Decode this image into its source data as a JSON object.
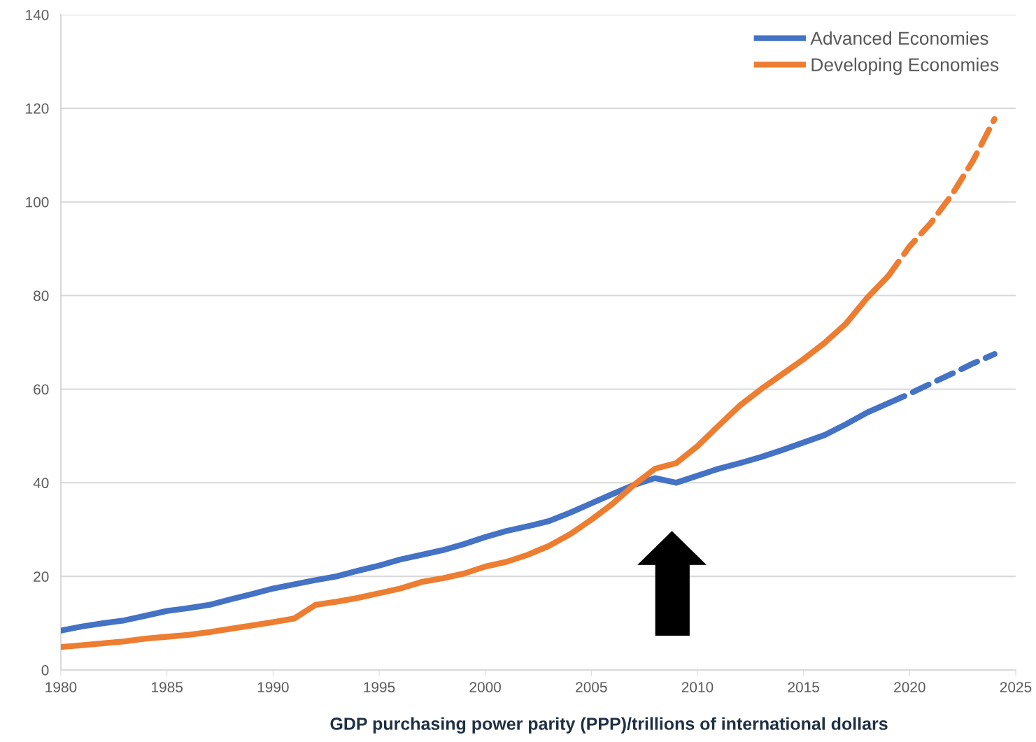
{
  "chart_data": {
    "type": "line",
    "xlabel": "GDP purchasing power parity (PPP)/trillions of international dollars",
    "x": [
      1980,
      1981,
      1982,
      1983,
      1984,
      1985,
      1986,
      1987,
      1988,
      1989,
      1990,
      1991,
      1992,
      1993,
      1994,
      1995,
      1996,
      1997,
      1998,
      1999,
      2000,
      2001,
      2002,
      2003,
      2004,
      2005,
      2006,
      2007,
      2008,
      2009,
      2010,
      2011,
      2012,
      2013,
      2014,
      2015,
      2016,
      2017,
      2018,
      2019
    ],
    "series": [
      {
        "name": "Advanced Economies",
        "color": "#4472c4",
        "line_style": "solid",
        "values": [
          8.4,
          9.3,
          10.0,
          10.6,
          11.6,
          12.6,
          13.2,
          13.9,
          15.1,
          16.2,
          17.4,
          18.3,
          19.2,
          20.0,
          21.2,
          22.3,
          23.6,
          24.6,
          25.6,
          26.9,
          28.4,
          29.7,
          30.7,
          31.8,
          33.6,
          35.6,
          37.6,
          39.5,
          41.0,
          40.0,
          41.5,
          43.0,
          44.2,
          45.5,
          47.0,
          48.6,
          50.2,
          52.5,
          55.0,
          57.0
        ]
      },
      {
        "name": "Developing Economies",
        "color": "#ed7d31",
        "line_style": "solid",
        "values": [
          4.9,
          5.3,
          5.7,
          6.1,
          6.7,
          7.1,
          7.5,
          8.1,
          8.8,
          9.5,
          10.2,
          11.0,
          13.9,
          14.6,
          15.4,
          16.4,
          17.4,
          18.8,
          19.6,
          20.6,
          22.1,
          23.1,
          24.6,
          26.5,
          29.0,
          32.1,
          35.5,
          39.5,
          43.0,
          44.2,
          47.8,
          52.2,
          56.5,
          60.0,
          63.2,
          66.4,
          69.9,
          74.0,
          79.5,
          84.2
        ]
      },
      {
        "color": "#4472c4",
        "line_style": "dashed",
        "x": [
          2019,
          2020,
          2021,
          2022,
          2023,
          2024
        ],
        "values": [
          57.0,
          59.0,
          61.2,
          63.3,
          65.5,
          67.5
        ]
      },
      {
        "color": "#ed7d31",
        "line_style": "dashed",
        "x": [
          2019,
          2020,
          2021,
          2022,
          2023,
          2024
        ],
        "values": [
          84.2,
          90.5,
          95.5,
          101.6,
          108.9,
          117.7
        ]
      }
    ],
    "xlim": [
      1980,
      2025
    ],
    "xticks": [
      1980,
      1985,
      1990,
      1995,
      2000,
      2005,
      2010,
      2015,
      2020,
      2025
    ],
    "ylim": [
      0,
      140
    ],
    "yticks": [
      0,
      20,
      40,
      60,
      80,
      100,
      120,
      140
    ],
    "grid": "y",
    "legend": "top right",
    "marker": "none"
  }
}
